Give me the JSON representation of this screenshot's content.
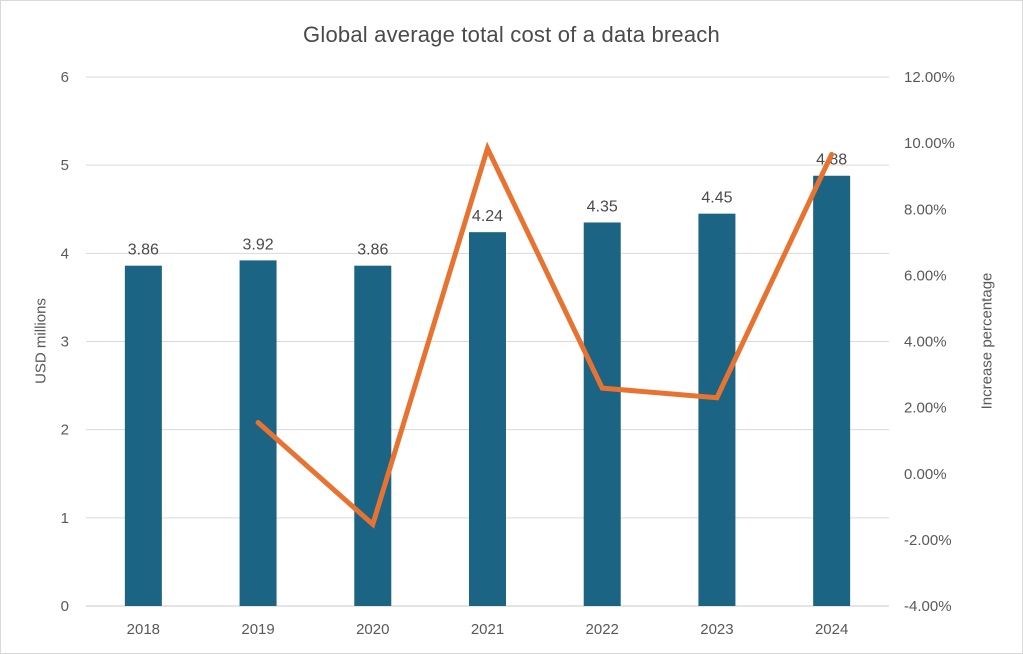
{
  "title": "Global average total cost of a data breach",
  "colors": {
    "bar": "#1C6484",
    "line": "#E87331",
    "grid": "#D9D9D9",
    "baseline": "#C9C9C9",
    "axis_text": "#595959",
    "title_text": "#4A4A4A",
    "background": "#FFFFFF",
    "border": "#D9D9D9"
  },
  "chart_data": {
    "type": "bar",
    "subtype": "combo-bar-line",
    "title": "Global average total cost of a data breach",
    "categories": [
      "2018",
      "2019",
      "2020",
      "2021",
      "2022",
      "2023",
      "2024"
    ],
    "series": [
      {
        "name": "Average total cost (USD millions)",
        "type": "bar",
        "axis": "left",
        "values": [
          3.86,
          3.92,
          3.86,
          4.24,
          4.35,
          4.45,
          4.88
        ],
        "labels": [
          "3.86",
          "3.92",
          "3.86",
          "4.24",
          "4.35",
          "4.45",
          "4.88"
        ],
        "color": "#1C6484"
      },
      {
        "name": "Increase percentage",
        "type": "line",
        "axis": "right",
        "values": [
          null,
          1.55,
          -1.53,
          9.84,
          2.59,
          2.3,
          9.66
        ],
        "color": "#E87331"
      }
    ],
    "left_axis": {
      "label": "USD millions",
      "min": 0,
      "max": 6,
      "step": 1,
      "ticks": [
        "0",
        "1",
        "2",
        "3",
        "4",
        "5",
        "6"
      ]
    },
    "right_axis": {
      "label": "Increase percentage",
      "min": -4,
      "max": 12,
      "step": 2,
      "ticks": [
        "-4.00%",
        "-2.00%",
        "0.00%",
        "2.00%",
        "4.00%",
        "6.00%",
        "8.00%",
        "10.00%",
        "12.00%"
      ]
    },
    "grid": true,
    "legend": false,
    "data_labels": true
  }
}
